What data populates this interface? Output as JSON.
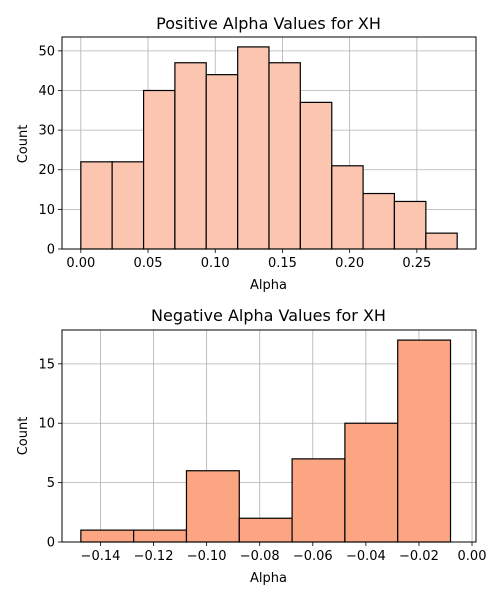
{
  "chart_data": [
    {
      "type": "bar",
      "title": "Positive Alpha Values for XH",
      "xlabel": "Alpha",
      "ylabel": "Count",
      "color": "#fcc5b0",
      "edge_color": "#000000",
      "grid": true,
      "xlim": [
        -0.014,
        0.294
      ],
      "ylim": [
        0,
        53.5
      ],
      "xticks": [
        {
          "value": 0.0,
          "label": "0.00"
        },
        {
          "value": 0.05,
          "label": "0.05"
        },
        {
          "value": 0.1,
          "label": "0.10"
        },
        {
          "value": 0.15,
          "label": "0.15"
        },
        {
          "value": 0.2,
          "label": "0.20"
        },
        {
          "value": 0.25,
          "label": "0.25"
        }
      ],
      "yticks": [
        {
          "value": 0,
          "label": "0"
        },
        {
          "value": 10,
          "label": "10"
        },
        {
          "value": 20,
          "label": "20"
        },
        {
          "value": 30,
          "label": "30"
        },
        {
          "value": 40,
          "label": "40"
        },
        {
          "value": 50,
          "label": "50"
        }
      ],
      "bins": [
        {
          "x0": 0.0,
          "x1": 0.0233,
          "count": 22
        },
        {
          "x0": 0.0233,
          "x1": 0.0467,
          "count": 22
        },
        {
          "x0": 0.0467,
          "x1": 0.07,
          "count": 40
        },
        {
          "x0": 0.07,
          "x1": 0.0933,
          "count": 47
        },
        {
          "x0": 0.0933,
          "x1": 0.1167,
          "count": 44
        },
        {
          "x0": 0.1167,
          "x1": 0.14,
          "count": 51
        },
        {
          "x0": 0.14,
          "x1": 0.1633,
          "count": 47
        },
        {
          "x0": 0.1633,
          "x1": 0.1867,
          "count": 37
        },
        {
          "x0": 0.1867,
          "x1": 0.21,
          "count": 21
        },
        {
          "x0": 0.21,
          "x1": 0.2333,
          "count": 14
        },
        {
          "x0": 0.2333,
          "x1": 0.2567,
          "count": 12
        },
        {
          "x0": 0.2567,
          "x1": 0.28,
          "count": 4
        }
      ]
    },
    {
      "type": "bar",
      "title": "Negative Alpha Values for XH",
      "xlabel": "Alpha",
      "ylabel": "Count",
      "color": "#fca583",
      "edge_color": "#000000",
      "grid": true,
      "xlim": [
        -0.1545,
        0.0015
      ],
      "ylim": [
        0,
        17.85
      ],
      "xticks": [
        {
          "value": -0.14,
          "label": "−0.14"
        },
        {
          "value": -0.12,
          "label": "−0.12"
        },
        {
          "value": -0.1,
          "label": "−0.10"
        },
        {
          "value": -0.08,
          "label": "−0.08"
        },
        {
          "value": -0.06,
          "label": "−0.06"
        },
        {
          "value": -0.04,
          "label": "−0.04"
        },
        {
          "value": -0.02,
          "label": "−0.02"
        },
        {
          "value": 0.0,
          "label": "0.00"
        }
      ],
      "yticks": [
        {
          "value": 0,
          "label": "0"
        },
        {
          "value": 5,
          "label": "5"
        },
        {
          "value": 10,
          "label": "10"
        },
        {
          "value": 15,
          "label": "15"
        }
      ],
      "bins": [
        {
          "x0": -0.1474,
          "x1": -0.1275,
          "count": 1
        },
        {
          "x0": -0.1275,
          "x1": -0.1076,
          "count": 1
        },
        {
          "x0": -0.1076,
          "x1": -0.0877,
          "count": 6
        },
        {
          "x0": -0.0877,
          "x1": -0.0678,
          "count": 2
        },
        {
          "x0": -0.0678,
          "x1": -0.0479,
          "count": 7
        },
        {
          "x0": -0.0479,
          "x1": -0.028,
          "count": 10
        },
        {
          "x0": -0.028,
          "x1": -0.0081,
          "count": 17
        }
      ]
    }
  ]
}
